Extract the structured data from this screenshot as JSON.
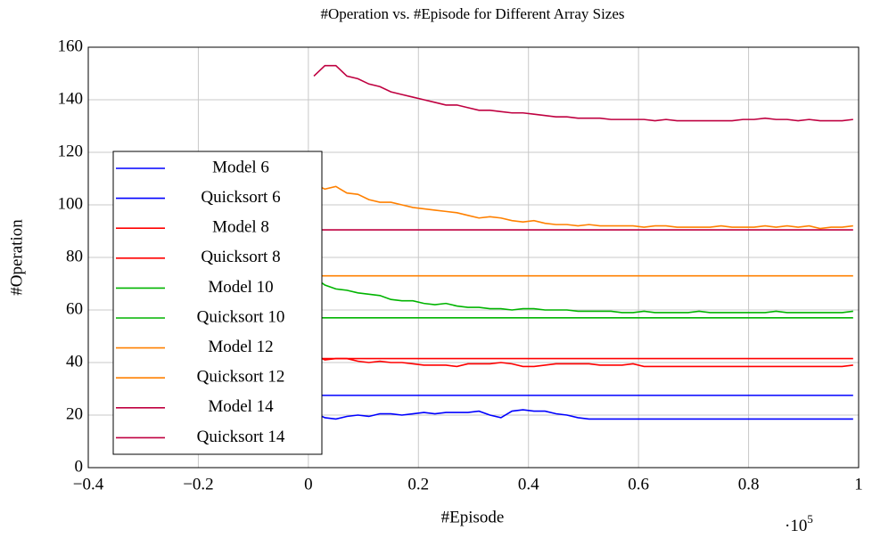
{
  "chart_data": {
    "type": "line",
    "title": "#Operation vs. #Episode for Different Array Sizes",
    "x_label": "#Episode",
    "y_label": "#Operation",
    "x_multiplier": {
      "base": "·10",
      "exponent": "5"
    },
    "xlim": [
      -0.4,
      1
    ],
    "xticks": [
      {
        "value": -0.4,
        "label": "−0.4"
      },
      {
        "value": -0.2,
        "label": "−0.2"
      },
      0,
      0.2,
      0.4,
      0.6,
      0.8,
      1
    ],
    "ylim": [
      0,
      160
    ],
    "yticks": [
      0,
      20,
      40,
      60,
      80,
      100,
      120,
      140,
      160
    ],
    "grid": true,
    "legend": "left",
    "x": [
      0.01,
      0.03,
      0.05,
      0.07,
      0.09,
      0.11,
      0.13,
      0.15,
      0.17,
      0.19,
      0.21,
      0.23,
      0.25,
      0.27,
      0.29,
      0.31,
      0.33,
      0.35,
      0.37,
      0.39,
      0.41,
      0.43,
      0.45,
      0.47,
      0.49,
      0.51,
      0.53,
      0.55,
      0.57,
      0.59,
      0.61,
      0.63,
      0.65,
      0.67,
      0.69,
      0.71,
      0.73,
      0.75,
      0.77,
      0.79,
      0.81,
      0.83,
      0.85,
      0.87,
      0.89,
      0.91,
      0.93,
      0.95,
      0.97,
      0.99
    ],
    "series": [
      {
        "name": "Model 6",
        "color": "#0000ff",
        "values": [
          21,
          19,
          18.5,
          19.5,
          20,
          19.5,
          20.5,
          20.5,
          20,
          20.5,
          21,
          20.5,
          21,
          21,
          21,
          21.5,
          20,
          19,
          21.5,
          22,
          21.5,
          21.5,
          20.5,
          20,
          19,
          18.5,
          18.5,
          18.5,
          18.5,
          18.5,
          18.5,
          18.5,
          18.5,
          18.5,
          18.5,
          18.5,
          18.5,
          18.5,
          18.5,
          18.5,
          18.5,
          18.5,
          18.5,
          18.5,
          18.5,
          18.5,
          18.5,
          18.5,
          18.5,
          18.5
        ]
      },
      {
        "name": "Quicksort 6",
        "color": "#0000ff",
        "x": [
          0.01,
          0.99
        ],
        "values": [
          27.5,
          27.5
        ]
      },
      {
        "name": "Model 8",
        "color": "#ff0000",
        "values": [
          43,
          41,
          41.5,
          41.5,
          40.5,
          40,
          40.5,
          40,
          40,
          39.5,
          39,
          39,
          39,
          38.5,
          39.5,
          39.5,
          39.5,
          40,
          39.5,
          38.5,
          38.5,
          39,
          39.5,
          39.5,
          39.5,
          39.5,
          39,
          39,
          39,
          39.5,
          38.5,
          38.5,
          38.5,
          38.5,
          38.5,
          38.5,
          38.5,
          38.5,
          38.5,
          38.5,
          38.5,
          38.5,
          38.5,
          38.5,
          38.5,
          38.5,
          38.5,
          38.5,
          38.5,
          39
        ]
      },
      {
        "name": "Quicksort 8",
        "color": "#ff0000",
        "x": [
          0.01,
          0.99
        ],
        "values": [
          41.5,
          41.5
        ]
      },
      {
        "name": "Model 10",
        "color": "#00b400",
        "values": [
          72.5,
          69.5,
          68,
          67.5,
          66.5,
          66,
          65.5,
          64,
          63.5,
          63.5,
          62.5,
          62,
          62.5,
          61.5,
          61,
          61,
          60.5,
          60.5,
          60,
          60.5,
          60.5,
          60,
          60,
          60,
          59.5,
          59.5,
          59.5,
          59.5,
          59,
          59,
          59.5,
          59,
          59,
          59,
          59,
          59.5,
          59,
          59,
          59,
          59,
          59,
          59,
          59.5,
          59,
          59,
          59,
          59,
          59,
          59,
          59.5
        ]
      },
      {
        "name": "Quicksort 10",
        "color": "#00b400",
        "x": [
          0.01,
          0.99
        ],
        "values": [
          57,
          57
        ]
      },
      {
        "name": "Model 12",
        "color": "#ff8000",
        "values": [
          108,
          106,
          107,
          104.5,
          104,
          102,
          101,
          101,
          100,
          99,
          98.5,
          98,
          97.5,
          97,
          96,
          95,
          95.5,
          95,
          94,
          93.5,
          94,
          93,
          92.5,
          92.5,
          92,
          92.5,
          92,
          92,
          92,
          92,
          91.5,
          92,
          92,
          91.5,
          91.5,
          91.5,
          91.5,
          92,
          91.5,
          91.5,
          91.5,
          92,
          91.5,
          92,
          91.5,
          92,
          91,
          91.5,
          91.5,
          92
        ]
      },
      {
        "name": "Quicksort 12",
        "color": "#ff8000",
        "x": [
          0.01,
          0.99
        ],
        "values": [
          73,
          73
        ]
      },
      {
        "name": "Model 14",
        "color": "#bf0040",
        "values": [
          149,
          153,
          153,
          149,
          148,
          146,
          145,
          143,
          142,
          141,
          140,
          139,
          138,
          138,
          137,
          136,
          136,
          135.5,
          135,
          135,
          134.5,
          134,
          133.5,
          133.5,
          133,
          133,
          133,
          132.5,
          132.5,
          132.5,
          132.5,
          132,
          132.5,
          132,
          132,
          132,
          132,
          132,
          132,
          132.5,
          132.5,
          133,
          132.5,
          132.5,
          132,
          132.5,
          132,
          132,
          132,
          132.5
        ]
      },
      {
        "name": "Quicksort 14",
        "color": "#bf0040",
        "x": [
          0.01,
          0.99
        ],
        "values": [
          90.5,
          90.5
        ]
      }
    ]
  }
}
